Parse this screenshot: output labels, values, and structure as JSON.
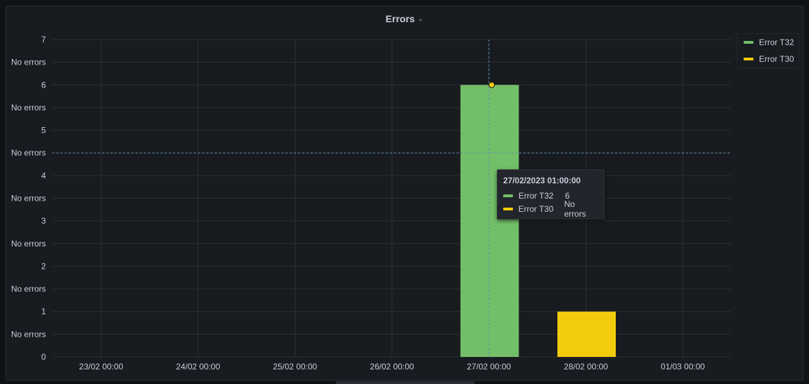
{
  "panel": {
    "title": "Errors",
    "menu_icon": "chevron-down-icon"
  },
  "legend": [
    {
      "name": "Error T32",
      "color": "#73bf69"
    },
    {
      "name": "Error T30",
      "color": "#f2cc0c"
    }
  ],
  "tooltip": {
    "title": "27/02/2023 01:00:00",
    "rows": [
      {
        "name": "Error T32",
        "value": "6",
        "color": "#73bf69"
      },
      {
        "name": "Error T30",
        "value": "No errors",
        "color": "#f2cc0c"
      }
    ]
  },
  "chart_data": {
    "type": "bar",
    "title": "Errors",
    "categories": [
      "23/02 00:00",
      "24/02 00:00",
      "25/02 00:00",
      "26/02 00:00",
      "27/02 00:00",
      "28/02 00:00",
      "01/03 00:00"
    ],
    "y_ticks": [
      {
        "value": 0,
        "label": "0"
      },
      {
        "value": 0.5,
        "label": "No errors"
      },
      {
        "value": 1,
        "label": "1"
      },
      {
        "value": 1.5,
        "label": "No errors"
      },
      {
        "value": 2,
        "label": "2"
      },
      {
        "value": 2.5,
        "label": "No errors"
      },
      {
        "value": 3,
        "label": "3"
      },
      {
        "value": 3.5,
        "label": "No errors"
      },
      {
        "value": 4,
        "label": "4"
      },
      {
        "value": 4.5,
        "label": "No errors"
      },
      {
        "value": 5,
        "label": "5"
      },
      {
        "value": 5.5,
        "label": "No errors"
      },
      {
        "value": 6,
        "label": "6"
      },
      {
        "value": 6.5,
        "label": "No errors"
      },
      {
        "value": 7,
        "label": "7"
      }
    ],
    "ylim": [
      0,
      7
    ],
    "grid": true,
    "legend_position": "right",
    "series": [
      {
        "name": "Error T32",
        "color": "#73bf69",
        "bars": [
          {
            "category": "27/02 00:00",
            "value": 6
          }
        ]
      },
      {
        "name": "Error T30",
        "color": "#f2cc0c",
        "bars": [
          {
            "category": "28/02 00:00",
            "value": 1
          }
        ]
      }
    ],
    "hover": {
      "category": "27/02 00:00",
      "y_value": 4.5,
      "series": "Error T32",
      "value": 6
    }
  }
}
